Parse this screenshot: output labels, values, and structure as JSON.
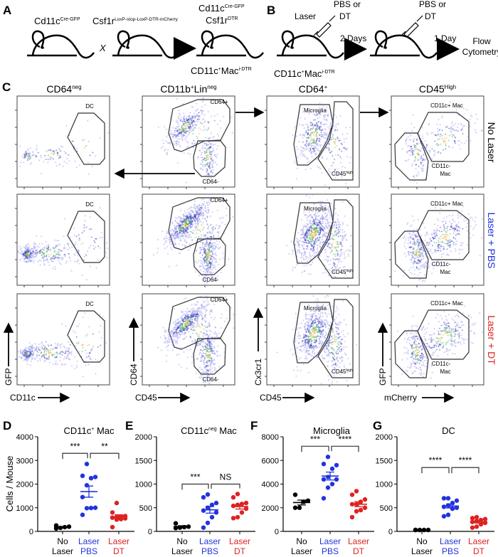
{
  "panel_labels": {
    "A": "A",
    "B": "B",
    "C": "C",
    "D": "D",
    "E": "E",
    "F": "F",
    "G": "G"
  },
  "panel_a": {
    "parent1": {
      "base": "Cd11c",
      "sup": "Cre-GFP"
    },
    "cross": "X",
    "parent2": {
      "base": "Csf1r",
      "sup": "LoxP-stop-LoxP-DTR-mCherry"
    },
    "offspring_line1": {
      "base": "Cd11c",
      "sup": "Cre-GFP"
    },
    "offspring_line2": {
      "base": "Csf1r",
      "sup": "DTR"
    },
    "offspring_name": {
      "base": "CD11c",
      "sup1": "+",
      "mid": "Mac",
      "sup2": "i-DTR"
    }
  },
  "panel_b": {
    "mouse_label": {
      "base": "CD11c",
      "sup1": "+",
      "mid": "Mac",
      "sup2": "i-DTR"
    },
    "step1_treatment": "Laser",
    "step1_injection": [
      "PBS or",
      "DT"
    ],
    "interval1": "2 Days",
    "step2_injection": [
      "PBS or",
      "DT"
    ],
    "interval2": "1 Day",
    "readout": [
      "Flow",
      "Cytometry"
    ]
  },
  "panel_c": {
    "columns": [
      {
        "base": "CD64",
        "sup": "neg"
      },
      {
        "base": "CD11b",
        "sup1": "+",
        "mid": "Lin",
        "sup2": "neg"
      },
      {
        "base": "CD64",
        "sup": "+"
      },
      {
        "base": "CD45",
        "sup": "High"
      }
    ],
    "rows": [
      {
        "label": "No Laser",
        "color": "#000000"
      },
      {
        "label": "Laser + PBS",
        "color": "#2233dd"
      },
      {
        "label": "Laser + DT",
        "color": "#dd2222"
      }
    ],
    "x_axes": [
      "CD11c",
      "CD45",
      "CD45",
      "mCherry"
    ],
    "y_axes": [
      "GFP",
      "CD64",
      "Cx3cr1",
      "GFP"
    ],
    "gates": {
      "dc": "DC",
      "cd64_pos": "CD64+",
      "cd64_neg": "CD64-",
      "microglia": "Microglia",
      "cd45_high": {
        "base": "CD45",
        "sup": "high"
      },
      "cd11c_pos_mac": "CD11c+ Mac",
      "cd11c_neg_mac": [
        "CD11c-",
        "Mac"
      ]
    }
  },
  "chart_data": [
    {
      "type": "scatter",
      "title": {
        "base": "CD11c",
        "sup": "+",
        "rest": " Mac"
      },
      "ylabel": "Cells / Mouse",
      "ylim": [
        0,
        4000
      ],
      "yticks": [
        "0",
        "1000",
        "2000",
        "3000",
        "4000"
      ],
      "categories": [
        [
          "No",
          "Laser"
        ],
        [
          "Laser",
          "PBS"
        ],
        [
          "Laser",
          "DT"
        ]
      ],
      "colors": [
        "#000000",
        "#2233dd",
        "#dd2222"
      ],
      "groups": [
        [
          150,
          250,
          200,
          180,
          120
        ],
        [
          2850,
          2300,
          2350,
          2250,
          1950,
          1000,
          990,
          980,
          700,
          1450
        ],
        [
          1200,
          800,
          600,
          580,
          550,
          520,
          620,
          500,
          180,
          650
        ]
      ],
      "comparisons": [
        {
          "pair": [
            0,
            1
          ],
          "label": "***",
          "level": 3300
        },
        {
          "pair": [
            1,
            2
          ],
          "label": "**",
          "level": 3300
        }
      ]
    },
    {
      "type": "scatter",
      "title": {
        "base": "CD11c",
        "sup": "neg",
        "rest": " Mac"
      },
      "ylabel": "",
      "ylim": [
        0,
        2000
      ],
      "yticks": [
        "0",
        "500",
        "1000",
        "1500",
        "2000"
      ],
      "categories": [
        [
          "No",
          "Laser"
        ],
        [
          "Laser",
          "PBS"
        ],
        [
          "Laser",
          "DT"
        ]
      ],
      "colors": [
        "#000000",
        "#2233dd",
        "#dd2222"
      ],
      "groups": [
        [
          170,
          100,
          80,
          70,
          90
        ],
        [
          780,
          720,
          600,
          560,
          500,
          440,
          400,
          300,
          180,
          80
        ],
        [
          790,
          720,
          600,
          580,
          560,
          540,
          480,
          400,
          300,
          280
        ]
      ],
      "comparisons": [
        {
          "pair": [
            0,
            1
          ],
          "label": "***",
          "level": 1000
        },
        {
          "pair": [
            1,
            2
          ],
          "label": "NS",
          "level": 1000
        }
      ]
    },
    {
      "type": "scatter",
      "title": {
        "base": "Microglia",
        "sup": "",
        "rest": ""
      },
      "ylabel": "",
      "ylim": [
        0,
        8000
      ],
      "yticks": [
        "0",
        "2000",
        "4000",
        "6000",
        "8000"
      ],
      "categories": [
        [
          "No",
          "Laser"
        ],
        [
          "Laser",
          "PBS"
        ],
        [
          "Laser",
          "DT"
        ]
      ],
      "colors": [
        "#000000",
        "#2233dd",
        "#dd2222"
      ],
      "groups": [
        [
          3100,
          2600,
          2500,
          2000,
          2000
        ],
        [
          6300,
          5700,
          5600,
          5300,
          4600,
          4400,
          4400,
          4000,
          3700,
          2800
        ],
        [
          3400,
          3100,
          2700,
          2500,
          2300,
          2300,
          2000,
          1800,
          1700,
          1200
        ]
      ],
      "comparisons": [
        {
          "pair": [
            0,
            1
          ],
          "label": "***",
          "level": 7200
        },
        {
          "pair": [
            1,
            2
          ],
          "label": "****",
          "level": 7200
        }
      ]
    },
    {
      "type": "scatter",
      "title": {
        "base": "DC",
        "sup": "",
        "rest": ""
      },
      "ylabel": "",
      "ylim": [
        0,
        2000
      ],
      "yticks": [
        "0",
        "500",
        "1000",
        "1500",
        "2000"
      ],
      "categories": [
        [
          "No",
          "Laser"
        ],
        [
          "Laser",
          "PBS"
        ],
        [
          "Laser",
          "DT"
        ]
      ],
      "colors": [
        "#000000",
        "#2233dd",
        "#dd2222"
      ],
      "groups": [
        [
          30,
          30,
          30,
          30,
          30
        ],
        [
          700,
          700,
          650,
          600,
          550,
          520,
          500,
          480,
          350,
          320
        ],
        [
          300,
          280,
          260,
          240,
          220,
          200,
          180,
          150,
          100,
          80
        ]
      ],
      "comparisons": [
        {
          "pair": [
            0,
            1
          ],
          "label": "****",
          "level": 1350
        },
        {
          "pair": [
            1,
            2
          ],
          "label": "****",
          "level": 1350
        }
      ]
    }
  ]
}
